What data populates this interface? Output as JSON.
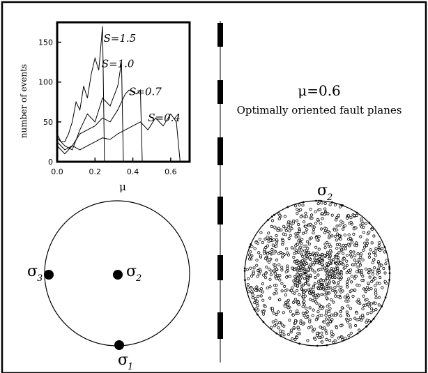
{
  "title": "μ=0.6",
  "subtitle": "Optimally oriented fault planes",
  "chart_data": {
    "type": "line",
    "xlabel": "μ",
    "ylabel": "number of events",
    "xlim": [
      0.0,
      0.7
    ],
    "ylim": [
      0,
      175
    ],
    "x_ticks": [
      "0.0",
      "0.2",
      "0.4",
      "0.6"
    ],
    "y_ticks": [
      "0",
      "50",
      "100",
      "150"
    ],
    "series": [
      {
        "name": "S=1.5",
        "x": [
          0.0,
          0.02,
          0.04,
          0.06,
          0.08,
          0.1,
          0.12,
          0.14,
          0.16,
          0.18,
          0.2,
          0.22,
          0.24,
          0.25
        ],
        "values": [
          35,
          25,
          25,
          35,
          50,
          75,
          65,
          95,
          80,
          110,
          130,
          115,
          170,
          0
        ]
      },
      {
        "name": "S=1.0",
        "x": [
          0.0,
          0.04,
          0.08,
          0.12,
          0.16,
          0.2,
          0.24,
          0.28,
          0.32,
          0.34,
          0.35
        ],
        "values": [
          30,
          20,
          15,
          40,
          60,
          50,
          80,
          70,
          95,
          125,
          0
        ]
      },
      {
        "name": "S=0.7",
        "x": [
          0.0,
          0.04,
          0.08,
          0.12,
          0.16,
          0.2,
          0.24,
          0.28,
          0.32,
          0.36,
          0.38,
          0.42,
          0.44,
          0.45
        ],
        "values": [
          25,
          15,
          20,
          35,
          40,
          45,
          55,
          50,
          65,
          85,
          90,
          85,
          90,
          0
        ]
      },
      {
        "name": "S=0.4",
        "x": [
          0.0,
          0.04,
          0.08,
          0.12,
          0.16,
          0.2,
          0.24,
          0.28,
          0.32,
          0.36,
          0.4,
          0.44,
          0.48,
          0.52,
          0.56,
          0.6,
          0.63,
          0.65
        ],
        "values": [
          20,
          10,
          20,
          15,
          20,
          25,
          30,
          28,
          35,
          40,
          45,
          50,
          40,
          55,
          45,
          60,
          50,
          0
        ]
      }
    ]
  },
  "stereonet_left": {
    "labels": {
      "sigma1": "σ",
      "sigma1_sub": "1",
      "sigma2": "σ",
      "sigma2_sub": "2",
      "sigma3": "σ",
      "sigma3_sub": "3"
    }
  },
  "stereonet_right": {
    "labels": {
      "sigma2": "σ",
      "sigma2_sub": "2"
    }
  }
}
